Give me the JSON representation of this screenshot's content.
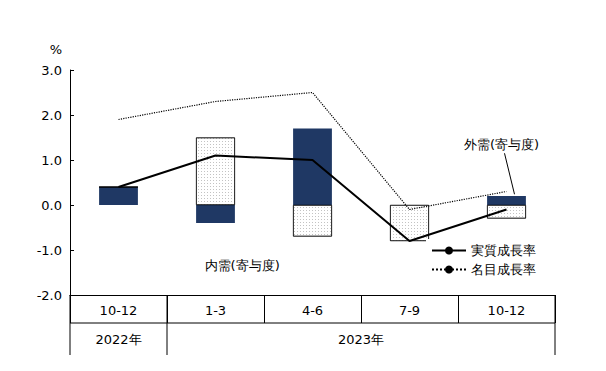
{
  "chart_data": {
    "type": "bar",
    "stacked": true,
    "y_label": "%",
    "categories": [
      "10-12",
      "1-3",
      "4-6",
      "7-9",
      "10-12"
    ],
    "category_groups": [
      {
        "label": "2022年",
        "count": 1
      },
      {
        "label": "2023年",
        "count": 4
      }
    ],
    "ylim": [
      -2,
      3
    ],
    "yticks": [
      {
        "value": -2,
        "label": "-2.0"
      },
      {
        "value": -1,
        "label": "-1.0"
      },
      {
        "value": 0,
        "label": "0.0"
      },
      {
        "value": 1,
        "label": "1.0"
      },
      {
        "value": 2,
        "label": "2.0"
      },
      {
        "value": 3,
        "label": "3.0"
      }
    ],
    "grid": false,
    "legend": "bottom-right",
    "series": [
      {
        "name": "内需(寄与度)",
        "type": "bar",
        "color": "#1f3864",
        "values": [
          0.4,
          -0.4,
          1.7,
          0.0,
          0.2
        ]
      },
      {
        "name": "外需(寄与度)",
        "type": "bar",
        "color": "#ffffff",
        "values": [
          0.0,
          1.5,
          -0.7,
          -0.8,
          -0.3
        ]
      },
      {
        "name": "実質成長率",
        "type": "line",
        "color": "#000000",
        "line_style": "solid",
        "values": [
          0.4,
          1.1,
          1.0,
          -0.8,
          -0.1
        ]
      },
      {
        "name": "名目成長率",
        "type": "line",
        "color": "#000000",
        "line_style": "dotted",
        "values": [
          1.9,
          2.3,
          2.5,
          -0.1,
          0.3
        ]
      }
    ]
  }
}
